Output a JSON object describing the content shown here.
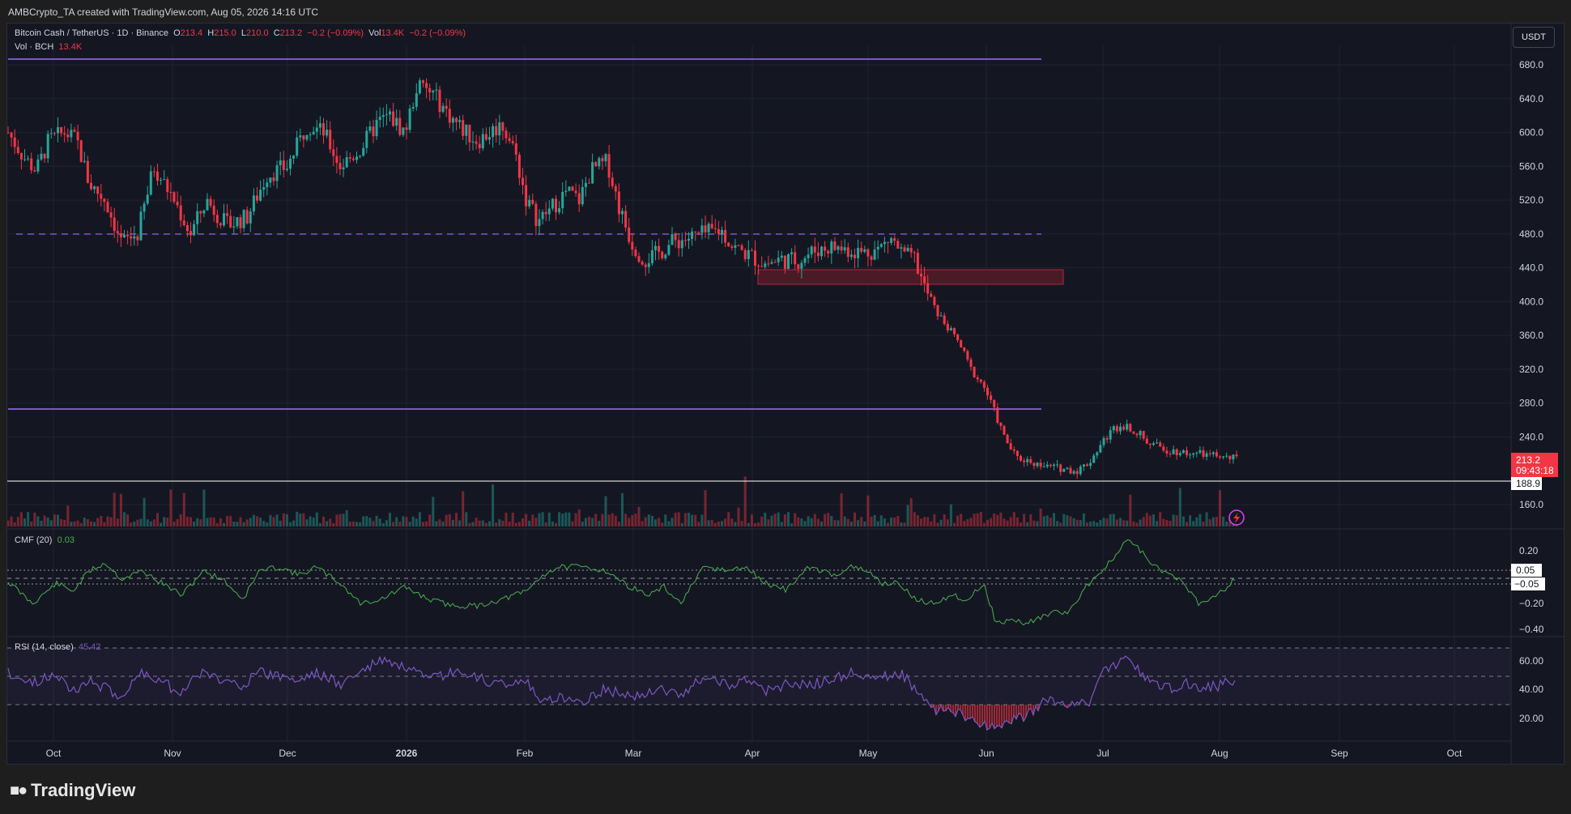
{
  "header": {
    "attribution": "AMBCrypto_TA created with TradingView.com, Aug 05, 2026 14:16 UTC"
  },
  "symbol": {
    "name": "Bitcoin Cash / TetherUS · 1D · Binance",
    "open_label": "O",
    "open": "213.4",
    "high_label": "H",
    "high": "215.0",
    "low_label": "L",
    "low": "210.0",
    "close_label": "C",
    "close": "213.2",
    "change": "−0.2 (−0.09%)",
    "vol_label": "Vol",
    "vol": "13.4K",
    "vol_change": "−0.2 (−0.09%)"
  },
  "volume_legend": {
    "label": "Vol · BCH",
    "value": "13.4K"
  },
  "currency_button": "USDT",
  "price_axis": [
    "680.0",
    "640.0",
    "600.0",
    "560.0",
    "520.0",
    "480.0",
    "440.0",
    "400.0",
    "360.0",
    "320.0",
    "280.0",
    "240.0",
    "160.0"
  ],
  "price_tags": {
    "last_price": "213.2",
    "countdown": "09:43:18",
    "level": "188.9"
  },
  "cmf": {
    "label": "CMF (20)",
    "value": "0.03",
    "axis": [
      "0.20",
      "−0.20",
      "−0.40"
    ],
    "tag_upper": "0.05",
    "tag_lower": "−0.05"
  },
  "rsi": {
    "label": "RSI (14, close)",
    "value": "45.42",
    "axis": [
      "60.00",
      "40.00",
      "20.00"
    ]
  },
  "time_axis": [
    "Oct",
    "Nov",
    "Dec",
    "2026",
    "Feb",
    "Mar",
    "Apr",
    "May",
    "Jun",
    "Jul",
    "Aug",
    "Sep",
    "Oct"
  ],
  "brand": "TradingView",
  "colors": {
    "up": "#26a69a",
    "down": "#f23645",
    "level_line": "#7e57c2",
    "cmf": "#4caf50",
    "rsi": "#7e57c2",
    "background": "#141722"
  }
}
